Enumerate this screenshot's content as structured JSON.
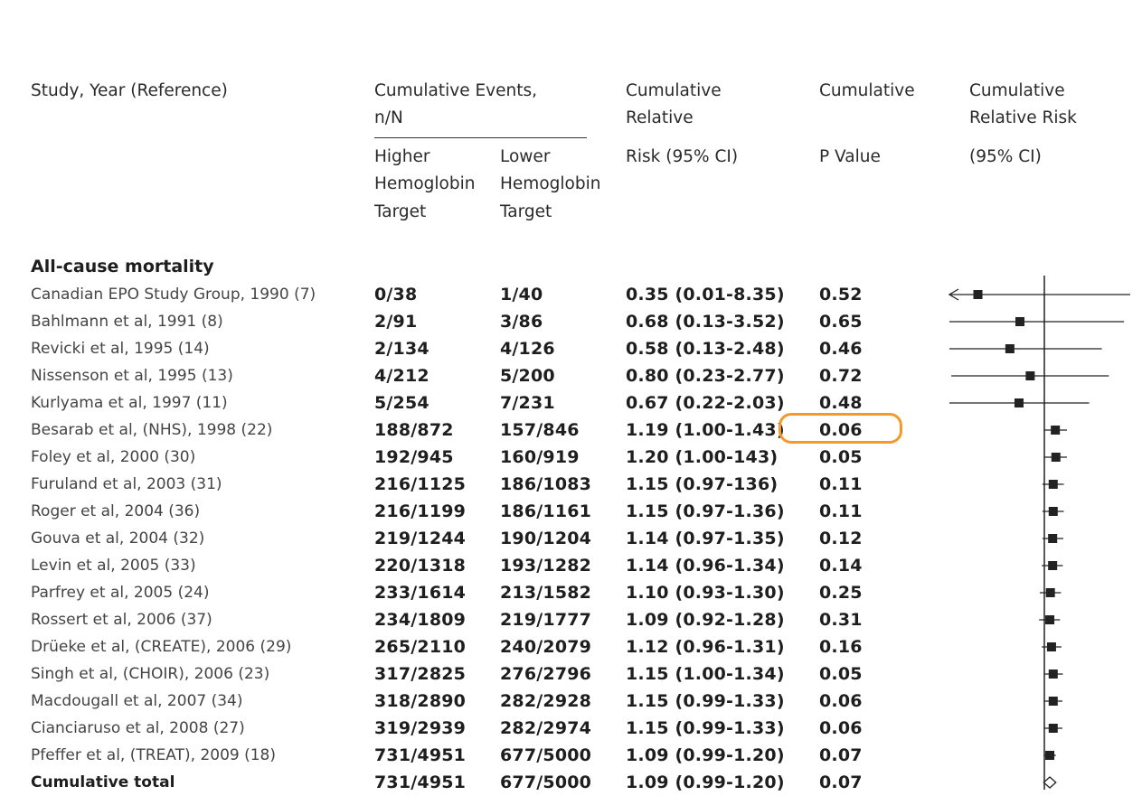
{
  "headers": {
    "study": "Study, Year (Reference)",
    "events_1": "Cumulative Events,",
    "events_2": "n/N",
    "higher_1": "Higher",
    "higher_2": "Hemoglobin",
    "higher_3": "Target",
    "lower_1": "Lower",
    "lower_2": "Hemoglobin",
    "lower_3": "Target",
    "rr_1": "Cumulative",
    "rr_2": "Relative",
    "rr_3": "Risk (95% CI)",
    "p_1": "Cumulative",
    "p_2": "P Value",
    "plot_1": "Cumulative",
    "plot_2": "Relative Risk",
    "plot_3": "(95% CI)"
  },
  "section_title": "All-cause mortality",
  "rows": [
    {
      "study": "Canadian EPO Study Group, 1990 (7)",
      "higher": "0/38",
      "lower": "1/40",
      "rr": "0.35 (0.01-8.35)",
      "p": "0.52"
    },
    {
      "study": "Bahlmann et al, 1991 (8)",
      "higher": "2/91",
      "lower": "3/86",
      "rr": "0.68 (0.13-3.52)",
      "p": "0.65"
    },
    {
      "study": "Revicki et al, 1995 (14)",
      "higher": "2/134",
      "lower": "4/126",
      "rr": "0.58 (0.13-2.48)",
      "p": "0.46"
    },
    {
      "study": "Nissenson  et al, 1995 (13)",
      "higher": "4/212",
      "lower": "5/200",
      "rr": "0.80 (0.23-2.77)",
      "p": "0.72"
    },
    {
      "study": "Kurlyama  et al, 1997 (11)",
      "higher": "5/254",
      "lower": "7/231",
      "rr": "0.67 (0.22-2.03)",
      "p": "0.48"
    },
    {
      "study": "Besarab  et al, (NHS), 1998 (22)",
      "higher": "188/872",
      "lower": "157/846",
      "rr": "1.19 (1.00-1.43)",
      "p": "0.06"
    },
    {
      "study": "Foley  et al, 2000 (30)",
      "higher": "192/945",
      "lower": "160/919",
      "rr": "1.20 (1.00-143)",
      "p": "0.05"
    },
    {
      "study": "Furuland  et al, 2003 (31)",
      "higher": "216/1125",
      "lower": "186/1083",
      "rr": "1.15 (0.97-136)",
      "p": "0.11"
    },
    {
      "study": "Roger  et al, 2004 (36)",
      "higher": "216/1199",
      "lower": "186/1161",
      "rr": "1.15 (0.97-1.36)",
      "p": "0.11"
    },
    {
      "study": "Gouva  et al, 2004 (32)",
      "higher": "219/1244",
      "lower": "190/1204",
      "rr": "1.14 (0.97-1.35)",
      "p": "0.12"
    },
    {
      "study": "Levin  et al, 2005 (33)",
      "higher": "220/1318",
      "lower": "193/1282",
      "rr": "1.14 (0.96-1.34)",
      "p": "0.14"
    },
    {
      "study": "Parfrey  et al, 2005 (24)",
      "higher": "233/1614",
      "lower": "213/1582",
      "rr": "1.10 (0.93-1.30)",
      "p": "0.25"
    },
    {
      "study": "Rossert  et al, 2006 (37)",
      "higher": "234/1809",
      "lower": "219/1777",
      "rr": "1.09 (0.92-1.28)",
      "p": "0.31"
    },
    {
      "study": "Drüeke  et al, (CREATE), 2006 (29)",
      "higher": "265/2110",
      "lower": "240/2079",
      "rr": "1.12 (0.96-1.31)",
      "p": "0.16"
    },
    {
      "study": "Singh  et al, (CHOIR), 2006 (23)",
      "higher": "317/2825",
      "lower": "276/2796",
      "rr": "1.15 (1.00-1.34)",
      "p": "0.05"
    },
    {
      "study": "Macdougall  et al, 2007 (34)",
      "higher": "318/2890",
      "lower": "282/2928",
      "rr": "1.15 (0.99-1.33)",
      "p": "0.06"
    },
    {
      "study": "Cianciaruso  et al, 2008 (27)",
      "higher": "319/2939",
      "lower": "282/2974",
      "rr": "1.15 (0.99-1.33)",
      "p": "0.06"
    },
    {
      "study": "Pfeffer  et al, (TREAT), 2009 (18)",
      "higher": "731/4951",
      "lower": "677/5000",
      "rr": "1.09 (0.99-1.20)",
      "p": "0.07"
    },
    {
      "study": "Cumulative total",
      "higher": "731/4951",
      "lower": "677/5000",
      "rr": "1.09 (0.99-1.20)",
      "p": "0.07",
      "is_total": true
    }
  ],
  "highlight_color": "#f39a2b",
  "chart_data": {
    "type": "forest",
    "x_scale": "log",
    "reference_line": 1,
    "points": [
      {
        "rr": 0.35,
        "lo": 0.01,
        "hi": 8.35,
        "lo_arrow": true
      },
      {
        "rr": 0.68,
        "lo": 0.13,
        "hi": 3.52
      },
      {
        "rr": 0.58,
        "lo": 0.13,
        "hi": 2.48
      },
      {
        "rr": 0.8,
        "lo": 0.23,
        "hi": 2.77
      },
      {
        "rr": 0.67,
        "lo": 0.22,
        "hi": 2.03
      },
      {
        "rr": 1.19,
        "lo": 1.0,
        "hi": 1.43
      },
      {
        "rr": 1.2,
        "lo": 1.0,
        "hi": 1.43
      },
      {
        "rr": 1.15,
        "lo": 0.97,
        "hi": 1.36
      },
      {
        "rr": 1.15,
        "lo": 0.97,
        "hi": 1.36
      },
      {
        "rr": 1.14,
        "lo": 0.97,
        "hi": 1.35
      },
      {
        "rr": 1.14,
        "lo": 0.96,
        "hi": 1.34
      },
      {
        "rr": 1.1,
        "lo": 0.93,
        "hi": 1.3
      },
      {
        "rr": 1.09,
        "lo": 0.92,
        "hi": 1.28
      },
      {
        "rr": 1.12,
        "lo": 0.96,
        "hi": 1.31
      },
      {
        "rr": 1.15,
        "lo": 1.0,
        "hi": 1.34
      },
      {
        "rr": 1.15,
        "lo": 0.99,
        "hi": 1.33
      },
      {
        "rr": 1.15,
        "lo": 0.99,
        "hi": 1.33
      },
      {
        "rr": 1.09,
        "lo": 0.99,
        "hi": 1.2
      },
      {
        "rr": 1.09,
        "lo": 0.99,
        "hi": 1.2,
        "summary": true
      }
    ]
  }
}
